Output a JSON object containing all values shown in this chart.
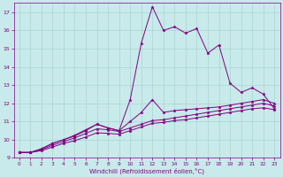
{
  "xlabel": "Windchill (Refroidissement éolien,°C)",
  "bg_color": "#c8eaea",
  "grid_color": "#aad4d4",
  "line_color": "#800080",
  "xlim": [
    -0.5,
    23.5
  ],
  "ylim": [
    9.0,
    17.5
  ],
  "xticks": [
    0,
    1,
    2,
    3,
    4,
    5,
    6,
    7,
    8,
    9,
    10,
    11,
    12,
    13,
    14,
    15,
    16,
    17,
    18,
    19,
    20,
    21,
    22,
    23
  ],
  "yticks": [
    9,
    10,
    11,
    12,
    13,
    14,
    15,
    16,
    17
  ],
  "series1_x": [
    0,
    1,
    2,
    3,
    4,
    5,
    6,
    7,
    8,
    9,
    10,
    11,
    12,
    13,
    14,
    15,
    16,
    17,
    18,
    19,
    20,
    21,
    22,
    23
  ],
  "series1_y": [
    9.3,
    9.3,
    9.5,
    9.8,
    10.0,
    10.25,
    10.55,
    10.85,
    10.65,
    10.5,
    12.2,
    15.3,
    17.3,
    16.0,
    16.2,
    15.85,
    16.1,
    14.75,
    15.2,
    13.1,
    12.6,
    12.85,
    12.5,
    11.7
  ],
  "series2_x": [
    0,
    1,
    2,
    3,
    4,
    5,
    6,
    7,
    8,
    9,
    10,
    11,
    12,
    13,
    14,
    15,
    16,
    17,
    18,
    19,
    20,
    21,
    22,
    23
  ],
  "series2_y": [
    9.3,
    9.3,
    9.5,
    9.8,
    10.0,
    10.2,
    10.5,
    10.85,
    10.65,
    10.5,
    11.0,
    11.5,
    12.2,
    11.5,
    11.6,
    11.65,
    11.7,
    11.75,
    11.8,
    11.9,
    12.0,
    12.1,
    12.2,
    12.0
  ],
  "series3_x": [
    0,
    1,
    2,
    3,
    4,
    5,
    6,
    7,
    8,
    9,
    10,
    11,
    12,
    13,
    14,
    15,
    16,
    17,
    18,
    19,
    20,
    21,
    22,
    23
  ],
  "series3_y": [
    9.3,
    9.3,
    9.45,
    9.7,
    9.9,
    10.1,
    10.35,
    10.6,
    10.55,
    10.45,
    10.65,
    10.85,
    11.05,
    11.1,
    11.2,
    11.3,
    11.4,
    11.5,
    11.6,
    11.7,
    11.8,
    11.9,
    12.0,
    11.85
  ],
  "series4_x": [
    0,
    1,
    2,
    3,
    4,
    5,
    6,
    7,
    8,
    9,
    10,
    11,
    12,
    13,
    14,
    15,
    16,
    17,
    18,
    19,
    20,
    21,
    22,
    23
  ],
  "series4_y": [
    9.3,
    9.3,
    9.4,
    9.6,
    9.8,
    9.95,
    10.15,
    10.38,
    10.35,
    10.3,
    10.5,
    10.7,
    10.9,
    10.95,
    11.05,
    11.1,
    11.2,
    11.3,
    11.4,
    11.5,
    11.6,
    11.7,
    11.75,
    11.65
  ]
}
